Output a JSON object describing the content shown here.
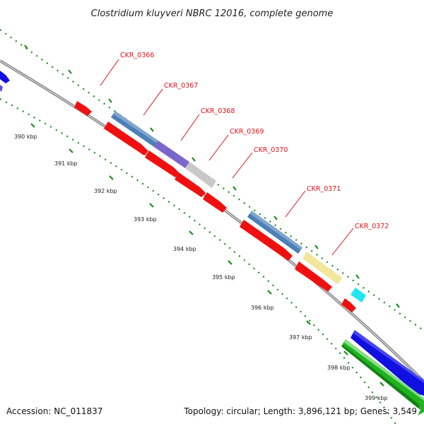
{
  "title": "Clostridium kluyveri NBRC 12016, complete genome",
  "footer": {
    "accession": "Accession: NC_011837",
    "summary": "Topology: circular; Length: 3,896,121 bp; Genes: 3,549"
  },
  "ticks": [
    "390 kbp",
    "391 kbp",
    "392 kbp",
    "393 kbp",
    "394 kbp",
    "395 kbp",
    "396 kbp",
    "397 kbp",
    "398 kbp",
    "399 kbp"
  ],
  "genes": [
    {
      "label": "CKR_0366"
    },
    {
      "label": "CKR_0367"
    },
    {
      "label": "CKR_0368"
    },
    {
      "label": "CKR_0369"
    },
    {
      "label": "CKR_0370"
    },
    {
      "label": "CKR_0371"
    },
    {
      "label": "CKR_0372"
    }
  ],
  "colors": {
    "cds": "#f01010",
    "blue_feature": "#4b80b8",
    "purple_feature": "#7a66cc",
    "grey_feature": "#c8c8c8",
    "yellow_feature": "#f2e69a",
    "cyan_feature": "#1fe6f0",
    "dark_blue_cds": "#1010e0",
    "green_cds": "#1fb31f",
    "backbone": "#8a8a8a",
    "tick_green": "#1a8c1a",
    "label_red": "#e0101a"
  }
}
